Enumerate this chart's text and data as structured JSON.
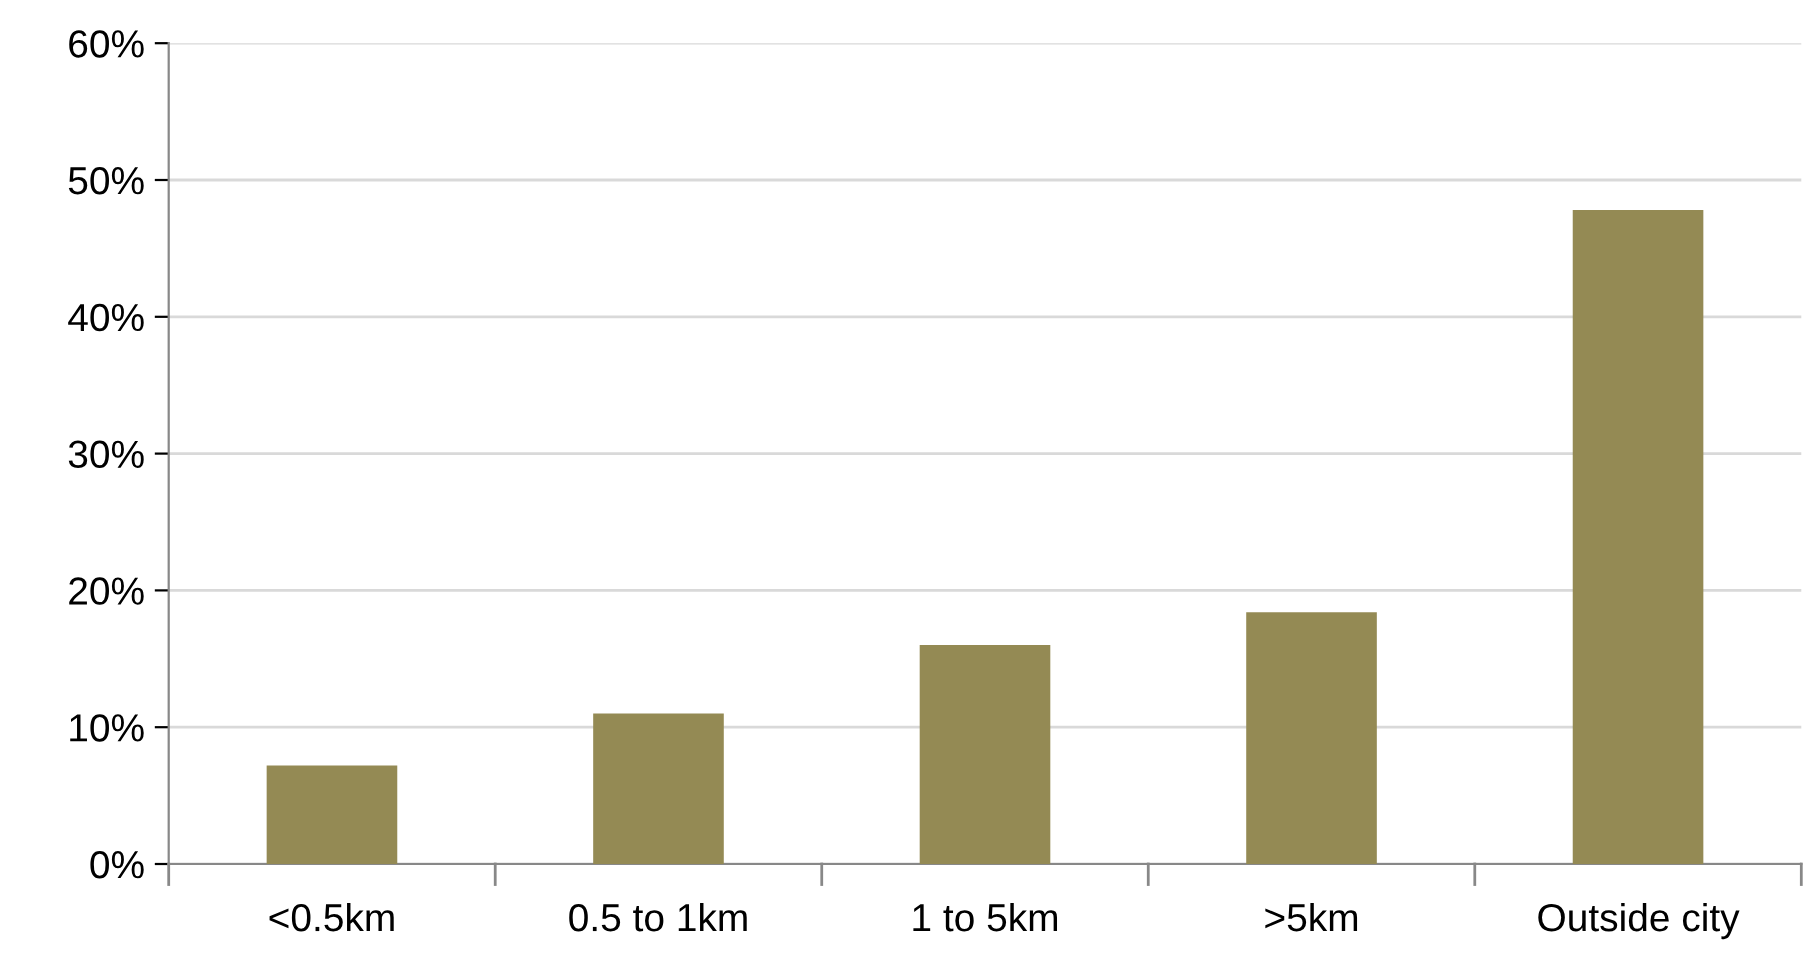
{
  "chart_data": {
    "type": "bar",
    "categories": [
      "<0.5km",
      "0.5 to 1km",
      "1 to 5km",
      ">5km",
      "Outside city"
    ],
    "values": [
      7.2,
      11.0,
      16.0,
      18.4,
      47.8
    ],
    "color": "#948a54",
    "ylim": [
      0,
      60
    ],
    "yticks": [
      {
        "value": 0,
        "label": "0%"
      },
      {
        "value": 10,
        "label": "10%"
      },
      {
        "value": 20,
        "label": "20%"
      },
      {
        "value": 30,
        "label": "30%"
      },
      {
        "value": 40,
        "label": "40%"
      },
      {
        "value": 50,
        "label": "50%"
      },
      {
        "value": 60,
        "label": "60%"
      }
    ],
    "grid": "y",
    "legend": false
  }
}
